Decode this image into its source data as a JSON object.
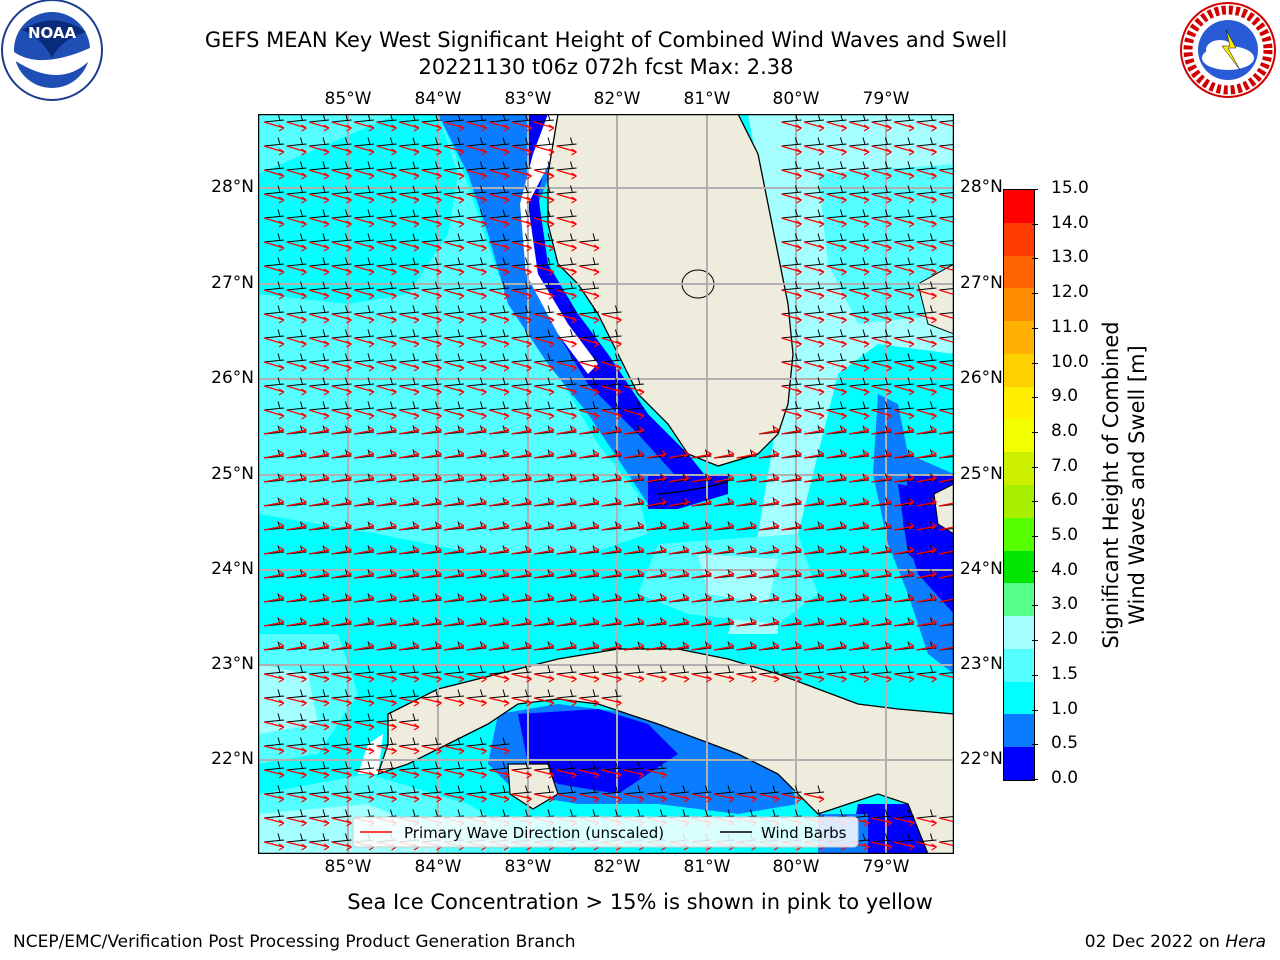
{
  "title_line1": "GEFS MEAN Key West Significant Height of Combined Wind Waves and Swell",
  "title_line2": "20221130 t06z 072h fcst   Max: 2.38",
  "lon_ticks": [
    "85°W",
    "84°W",
    "83°W",
    "82°W",
    "81°W",
    "80°W",
    "79°W"
  ],
  "lat_ticks": [
    "28°N",
    "27°N",
    "26°N",
    "25°N",
    "24°N",
    "23°N",
    "22°N"
  ],
  "colorbar": {
    "label_line1": "Significant Height of Combined",
    "label_line2": "Wind Waves and Swell [m]",
    "ticks": [
      "15.0",
      "14.0",
      "13.0",
      "12.0",
      "11.0",
      "10.0",
      "9.0",
      "8.0",
      "7.0",
      "6.0",
      "5.0",
      "4.0",
      "3.0",
      "2.0",
      "1.5",
      "1.0",
      "0.5",
      "0.0"
    ],
    "colors": [
      "#0000ff",
      "#0a7cff",
      "#00ffff",
      "#55ffff",
      "#a5ffff",
      "#55ff8a",
      "#00e400",
      "#55ff00",
      "#a8ee00",
      "#ccf000",
      "#f2ff00",
      "#ffee00",
      "#ffd000",
      "#ffb000",
      "#ff8c00",
      "#ff6400",
      "#ff3c00",
      "#ff0000"
    ]
  },
  "legend": {
    "wave": "Primary Wave Direction (unscaled)",
    "wind": "Wind Barbs"
  },
  "sea_ice_note": "Sea Ice Concentration > 15% is shown in pink to yellow",
  "footer_left": "NCEP/EMC/Verification Post Processing Product Generation Branch",
  "footer_right_date": "02 Dec 2022 on ",
  "footer_right_host": "Hera",
  "logos": {
    "noaa": "NOAA",
    "nws": "NATIONAL WEATHER SERVICE"
  },
  "colors": {
    "land": "#eeecdc",
    "deep_blue": "#0000ff",
    "mid_blue": "#0a7cff",
    "cyan": "#00ffff",
    "light_cyan": "#55ffff",
    "pale_cyan": "#a5ffff",
    "arrow": "#ff0000"
  }
}
